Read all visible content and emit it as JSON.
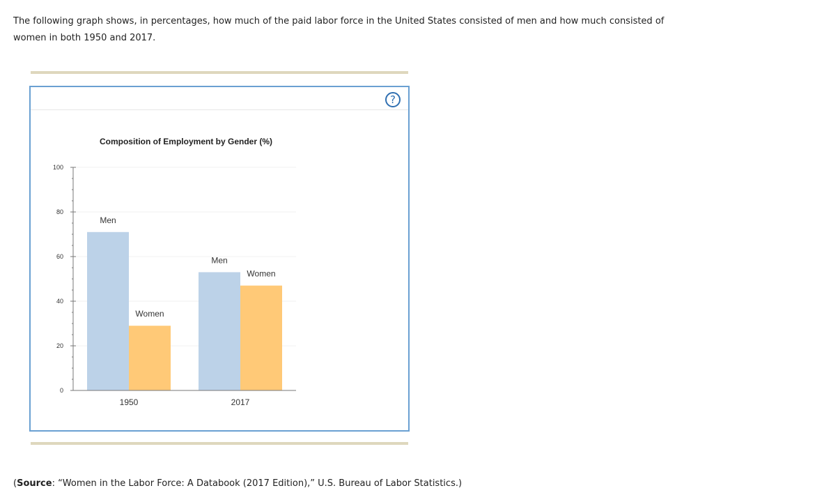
{
  "intro": {
    "text": "The following graph shows, in percentages, how much of the paid labor force in the United States consisted of men and how much consisted of women in both 1950 and 2017."
  },
  "panel": {
    "help_label": "?"
  },
  "chart_data": {
    "type": "bar",
    "title": "Composition of Employment by Gender (%)",
    "categories": [
      "1950",
      "2017"
    ],
    "series": [
      {
        "name": "Men",
        "values": [
          71,
          53
        ],
        "color": "#bcd2e8"
      },
      {
        "name": "Women",
        "values": [
          29,
          47
        ],
        "color": "#ffc977"
      }
    ],
    "bar_labels": [
      [
        "Men",
        "Women"
      ],
      [
        "Men",
        "Women"
      ]
    ],
    "ylim": [
      0,
      100
    ],
    "yticks": [
      0,
      20,
      40,
      60,
      80,
      100
    ],
    "xlabel": "",
    "ylabel": "",
    "grid": true,
    "legend": "none"
  },
  "source": {
    "prefix": "(",
    "label": "Source",
    "text": ": “Women in the Labor Force: A Databook (2017 Edition),” U.S. Bureau of Labor Statistics.)"
  }
}
